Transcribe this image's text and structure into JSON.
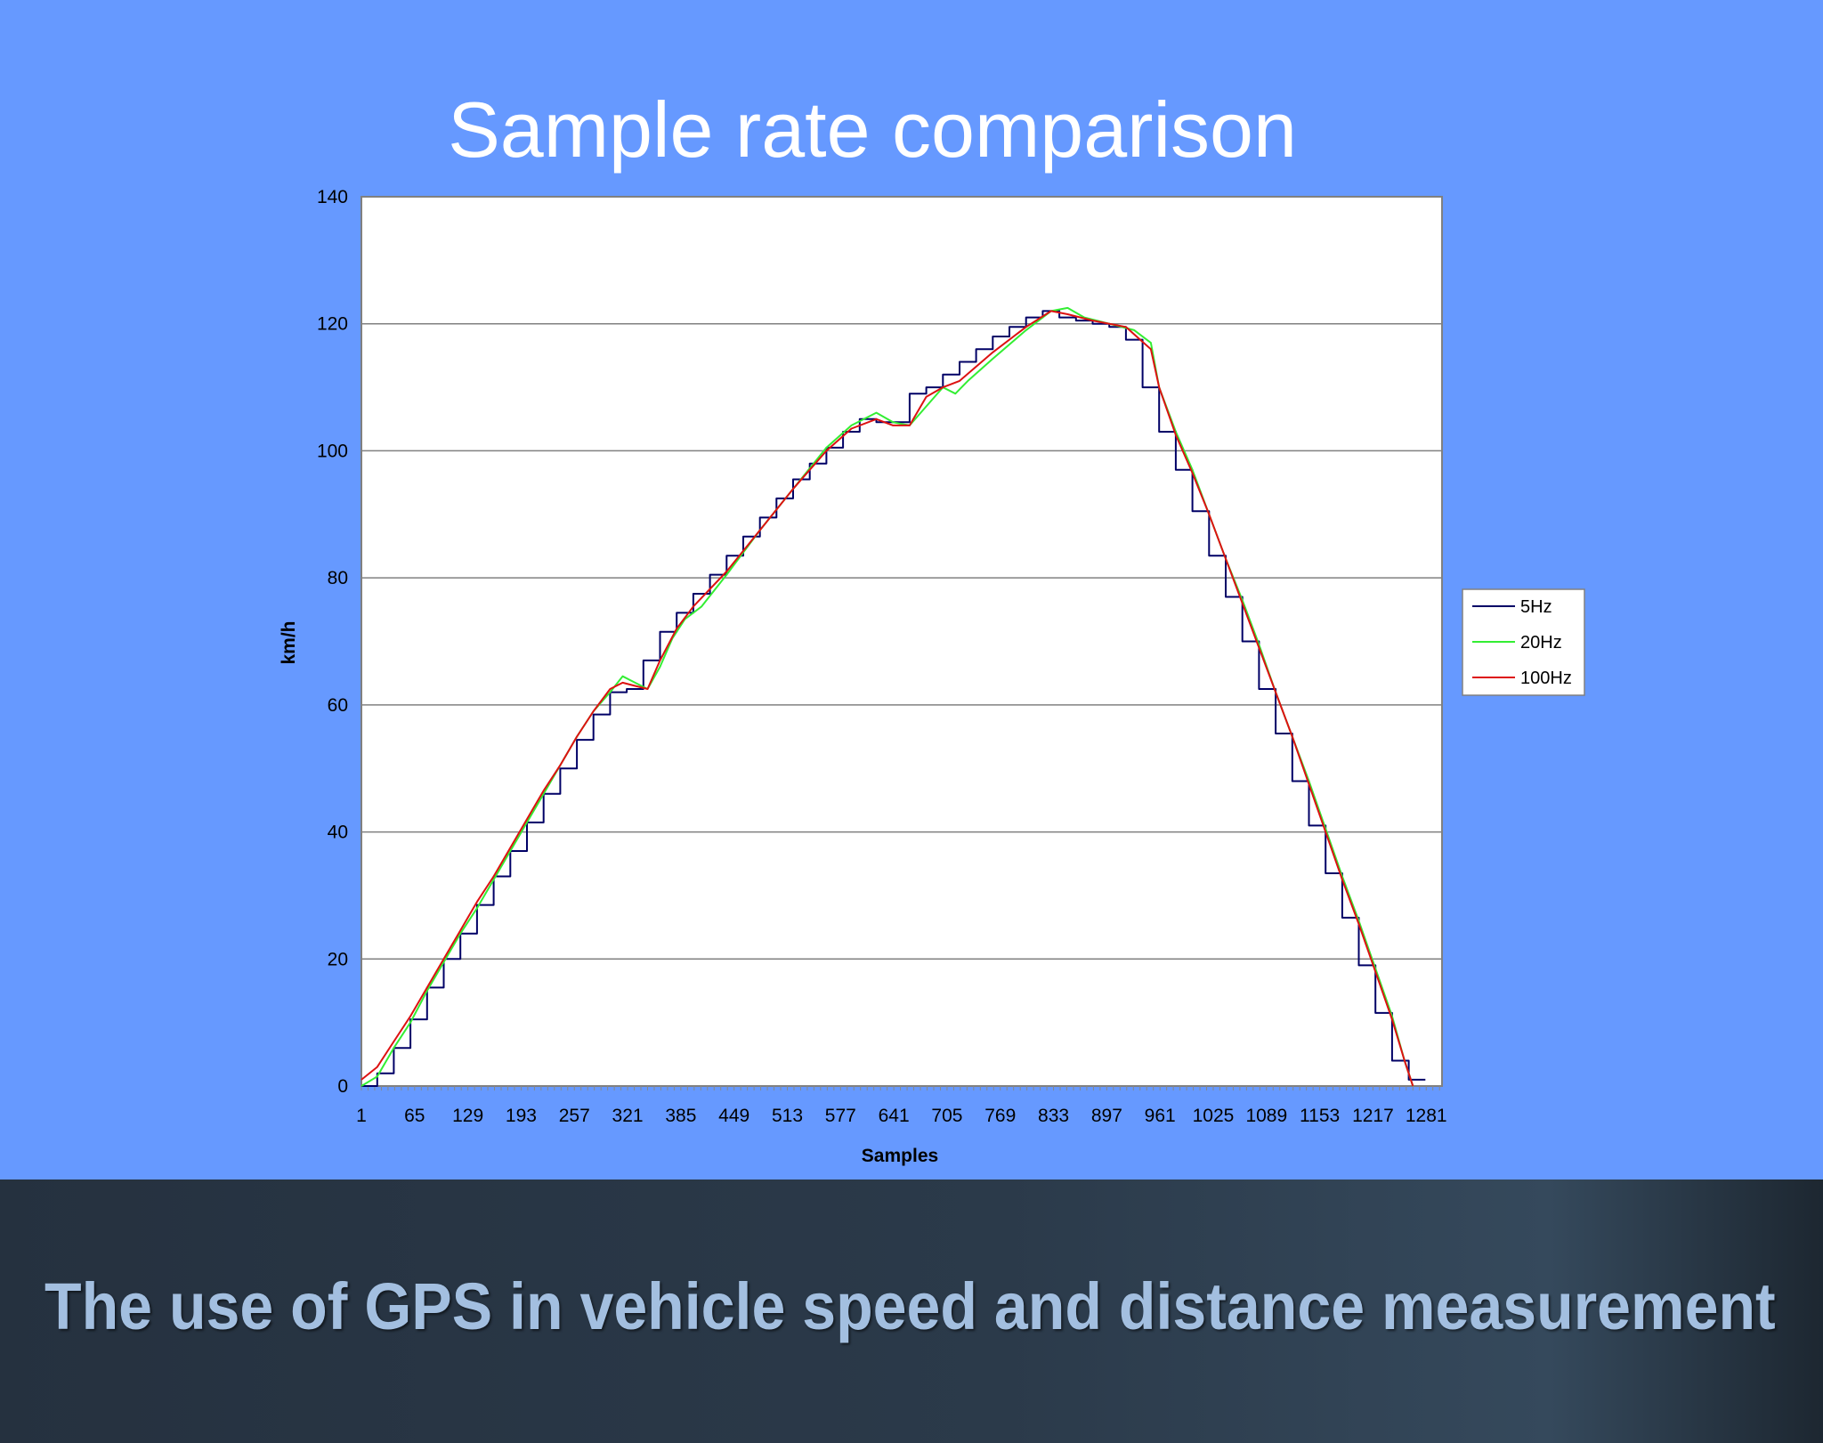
{
  "slide": {
    "title": "Sample rate comparison",
    "footer": "The use of GPS in vehicle speed and distance measurement",
    "background_color": "#6699ff",
    "footer_color": "#2b3a4a"
  },
  "chart_data": {
    "type": "line",
    "title": "",
    "xlabel": "Samples",
    "ylabel": "km/h",
    "xlim": [
      1,
      1300
    ],
    "ylim": [
      0,
      140
    ],
    "x_ticks": [
      1,
      65,
      129,
      193,
      257,
      321,
      385,
      449,
      513,
      577,
      641,
      705,
      769,
      833,
      897,
      961,
      1025,
      1089,
      1153,
      1217,
      1281
    ],
    "y_ticks": [
      0,
      20,
      40,
      60,
      80,
      100,
      120,
      140
    ],
    "grid": "horizontal",
    "legend_position": "right",
    "series": [
      {
        "name": "5Hz",
        "color": "#000066",
        "style": "step",
        "points": [
          [
            1,
            0
          ],
          [
            20,
            2
          ],
          [
            40,
            6
          ],
          [
            60,
            10.5
          ],
          [
            80,
            15.5
          ],
          [
            100,
            20
          ],
          [
            120,
            24
          ],
          [
            140,
            28.5
          ],
          [
            160,
            33
          ],
          [
            180,
            37
          ],
          [
            200,
            41.5
          ],
          [
            220,
            46
          ],
          [
            240,
            50
          ],
          [
            260,
            54.5
          ],
          [
            280,
            58.5
          ],
          [
            300,
            62
          ],
          [
            320,
            62.5
          ],
          [
            340,
            67
          ],
          [
            360,
            71.5
          ],
          [
            380,
            74.5
          ],
          [
            400,
            77.5
          ],
          [
            420,
            80.5
          ],
          [
            440,
            83.5
          ],
          [
            460,
            86.5
          ],
          [
            480,
            89.5
          ],
          [
            500,
            92.5
          ],
          [
            520,
            95.5
          ],
          [
            540,
            98
          ],
          [
            560,
            100.5
          ],
          [
            580,
            103
          ],
          [
            600,
            105
          ],
          [
            620,
            104.5
          ],
          [
            640,
            104.5
          ],
          [
            660,
            109
          ],
          [
            680,
            110
          ],
          [
            700,
            112
          ],
          [
            720,
            114
          ],
          [
            740,
            116
          ],
          [
            760,
            118
          ],
          [
            780,
            119.5
          ],
          [
            800,
            121
          ],
          [
            820,
            122
          ],
          [
            840,
            121
          ],
          [
            860,
            120.5
          ],
          [
            880,
            120
          ],
          [
            900,
            119.5
          ],
          [
            920,
            117.5
          ],
          [
            940,
            110
          ],
          [
            960,
            103
          ],
          [
            980,
            97
          ],
          [
            1000,
            90.5
          ],
          [
            1020,
            83.5
          ],
          [
            1040,
            77
          ],
          [
            1060,
            70
          ],
          [
            1080,
            62.5
          ],
          [
            1100,
            55.5
          ],
          [
            1120,
            48
          ],
          [
            1140,
            41
          ],
          [
            1160,
            33.5
          ],
          [
            1180,
            26.5
          ],
          [
            1200,
            19
          ],
          [
            1220,
            11.5
          ],
          [
            1240,
            4
          ],
          [
            1260,
            1
          ],
          [
            1280,
            1
          ]
        ]
      },
      {
        "name": "20Hz",
        "color": "#33ee33",
        "style": "line",
        "points": [
          [
            1,
            0
          ],
          [
            20,
            1.5
          ],
          [
            40,
            6
          ],
          [
            60,
            10
          ],
          [
            80,
            15
          ],
          [
            100,
            19.5
          ],
          [
            120,
            24
          ],
          [
            140,
            28
          ],
          [
            160,
            32.5
          ],
          [
            180,
            37
          ],
          [
            200,
            41.5
          ],
          [
            220,
            46
          ],
          [
            240,
            50.5
          ],
          [
            260,
            55
          ],
          [
            280,
            59
          ],
          [
            300,
            62
          ],
          [
            315,
            64.5
          ],
          [
            330,
            63.5
          ],
          [
            345,
            62.5
          ],
          [
            360,
            66
          ],
          [
            375,
            70.5
          ],
          [
            390,
            73.5
          ],
          [
            410,
            75.5
          ],
          [
            440,
            80.5
          ],
          [
            480,
            87.5
          ],
          [
            520,
            94
          ],
          [
            560,
            100.5
          ],
          [
            590,
            104
          ],
          [
            620,
            106
          ],
          [
            640,
            104.5
          ],
          [
            660,
            104
          ],
          [
            680,
            107
          ],
          [
            700,
            110
          ],
          [
            715,
            109
          ],
          [
            730,
            111
          ],
          [
            760,
            114.5
          ],
          [
            800,
            119
          ],
          [
            830,
            122
          ],
          [
            850,
            122.5
          ],
          [
            870,
            121
          ],
          [
            900,
            120
          ],
          [
            930,
            119
          ],
          [
            950,
            117
          ],
          [
            960,
            110
          ],
          [
            980,
            103
          ],
          [
            1000,
            97
          ],
          [
            1020,
            90
          ],
          [
            1040,
            83
          ],
          [
            1060,
            76.5
          ],
          [
            1080,
            69.5
          ],
          [
            1100,
            62
          ],
          [
            1120,
            55
          ],
          [
            1140,
            48
          ],
          [
            1160,
            40.5
          ],
          [
            1180,
            33
          ],
          [
            1200,
            26
          ],
          [
            1220,
            18.5
          ],
          [
            1240,
            11
          ],
          [
            1255,
            4
          ],
          [
            1265,
            0
          ]
        ]
      },
      {
        "name": "100Hz",
        "color": "#dd1111",
        "style": "line",
        "points": [
          [
            1,
            1
          ],
          [
            20,
            3
          ],
          [
            40,
            7
          ],
          [
            60,
            11
          ],
          [
            80,
            15.5
          ],
          [
            100,
            20
          ],
          [
            120,
            24.5
          ],
          [
            140,
            29
          ],
          [
            160,
            33
          ],
          [
            180,
            37.5
          ],
          [
            200,
            42
          ],
          [
            220,
            46.5
          ],
          [
            240,
            50.5
          ],
          [
            260,
            55
          ],
          [
            280,
            59
          ],
          [
            300,
            62.5
          ],
          [
            315,
            63.5
          ],
          [
            330,
            63
          ],
          [
            345,
            62.5
          ],
          [
            360,
            67
          ],
          [
            380,
            72
          ],
          [
            400,
            75.5
          ],
          [
            440,
            81
          ],
          [
            480,
            87.5
          ],
          [
            520,
            94
          ],
          [
            560,
            100
          ],
          [
            590,
            103.5
          ],
          [
            620,
            105
          ],
          [
            640,
            104
          ],
          [
            660,
            104
          ],
          [
            680,
            108.5
          ],
          [
            700,
            110
          ],
          [
            720,
            111
          ],
          [
            760,
            115.5
          ],
          [
            800,
            119.5
          ],
          [
            830,
            122
          ],
          [
            850,
            121.5
          ],
          [
            880,
            120.5
          ],
          [
            920,
            119.5
          ],
          [
            950,
            116
          ],
          [
            960,
            110
          ],
          [
            980,
            102.5
          ],
          [
            1000,
            96.5
          ],
          [
            1020,
            90
          ],
          [
            1040,
            83
          ],
          [
            1060,
            76
          ],
          [
            1080,
            69
          ],
          [
            1100,
            62
          ],
          [
            1120,
            55
          ],
          [
            1140,
            47.5
          ],
          [
            1160,
            40
          ],
          [
            1180,
            32.5
          ],
          [
            1200,
            25.5
          ],
          [
            1220,
            18
          ],
          [
            1240,
            10.5
          ],
          [
            1255,
            4
          ],
          [
            1265,
            0
          ]
        ]
      }
    ]
  }
}
